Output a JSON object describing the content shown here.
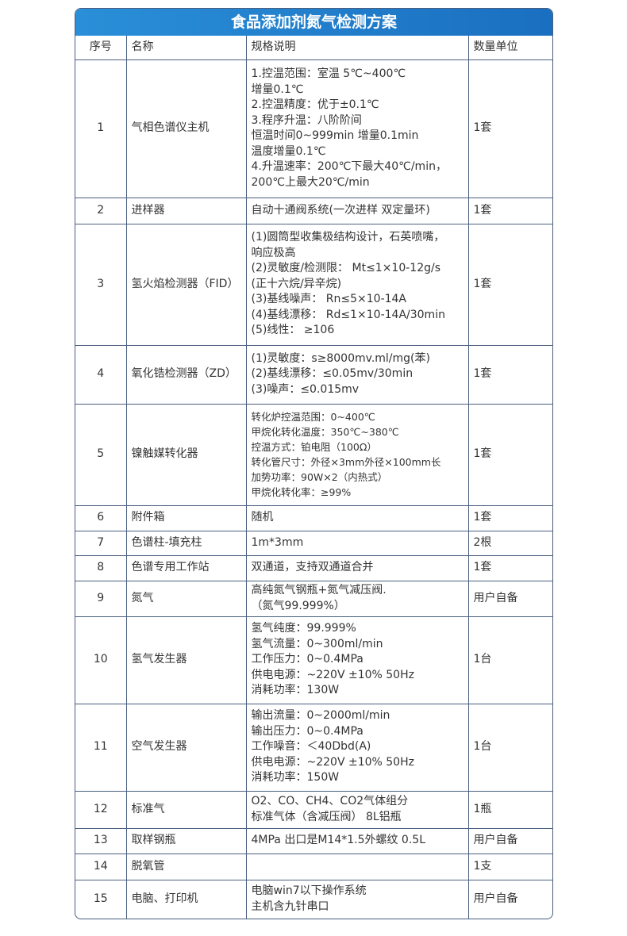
{
  "title": "食品添加剂氮气检测方案",
  "headers": [
    "序号",
    "名称",
    "规格说明",
    "数量单位"
  ],
  "rows": [
    {
      "no": "1",
      "name": "气相色谱仪主机",
      "spec": "1.控温范围：室温 5℃~400℃\n增量0.1℃\n2.控温精度：优于±0.1℃\n3.程序升温：八阶阶间\n恒温时间0~999min 增量0.1min\n温度增量0.1℃\n4.升温速率：200℃下最大40℃/min，\n200℃上最大20℃/min",
      "qty": "1套"
    },
    {
      "no": "2",
      "name": "进样器",
      "spec": "自动十通阀系统(一次进样 双定量环)",
      "qty": "1套"
    },
    {
      "no": "3",
      "name": "氢火焰检测器（FID）",
      "spec": "(1)圆筒型收集极结构设计，石英喷嘴，\n响应极高\n(2)灵敏度/检测限： Mt≤1×10-12g/s\n(正十六烷/异辛烷)\n(3)基线噪声： Rn≤5×10-14A\n(4)基线漂移： Rd≤1×10-14A/30min\n(5)线性： ≥106",
      "qty": "1套"
    },
    {
      "no": "4",
      "name": "氧化锆检测器（ZD）",
      "spec": "(1)灵敏度：s≥8000mv.ml/mg(苯)\n(2)基线漂移：≤0.05mv/30min\n(3)噪声：≤0.015mv",
      "qty": "1套"
    },
    {
      "no": "5",
      "name": "镍触媒转化器",
      "spec": "转化炉控温范围：0~400℃\n甲烷化转化温度：350℃~380℃\n控温方式：铂电阻（100Ω）\n转化管尺寸：外径×3mm外径×100mm长\n加势功率：90W×2（内热式）\n甲烷化转化率：≥99%",
      "qty": "1套"
    },
    {
      "no": "6",
      "name": "附件箱",
      "spec": "随机",
      "qty": "1套"
    },
    {
      "no": "7",
      "name": "色谱柱-填充柱",
      "spec": "1m*3mm",
      "qty": "2根"
    },
    {
      "no": "8",
      "name": "色谱专用工作站",
      "spec": "双通道，支持双通道合并",
      "qty": "1套"
    },
    {
      "no": "9",
      "name": "氮气",
      "spec": "高纯氮气钢瓶+氮气减压阀.\n（氮气99.999%）",
      "qty": "用户自备"
    },
    {
      "no": "10",
      "name": "氢气发生器",
      "spec": "氢气纯度：99.999%\n氢气流量：0~300ml/min\n工作压力：0~0.4MPa\n供电电源：~220V ±10% 50Hz\n消耗功率：130W",
      "qty": "1台"
    },
    {
      "no": "11",
      "name": "空气发生器",
      "spec": "输出流量：0~2000ml/min\n输出压力：0~0.4MPa\n工作噪音：＜40Dbd(A)\n供电电源：~220V ±10% 50Hz\n消耗功率：150W",
      "qty": "1台"
    },
    {
      "no": "12",
      "name": "标准气",
      "spec": "O2、CO、CH4、CO2气体组分\n标准气体（含减压阀） 8L铝瓶",
      "qty": "1瓶"
    },
    {
      "no": "13",
      "name": "取样钢瓶",
      "spec": "4MPa 出口是M14*1.5外螺纹 0.5L",
      "qty": "用户自备"
    },
    {
      "no": "14",
      "name": "脱氧管",
      "spec": "",
      "qty": "1支"
    },
    {
      "no": "15",
      "name": "电脑、打印机",
      "spec": "电脑win7以下操作系统\n主机含九针串口",
      "qty": "用户自备"
    }
  ]
}
